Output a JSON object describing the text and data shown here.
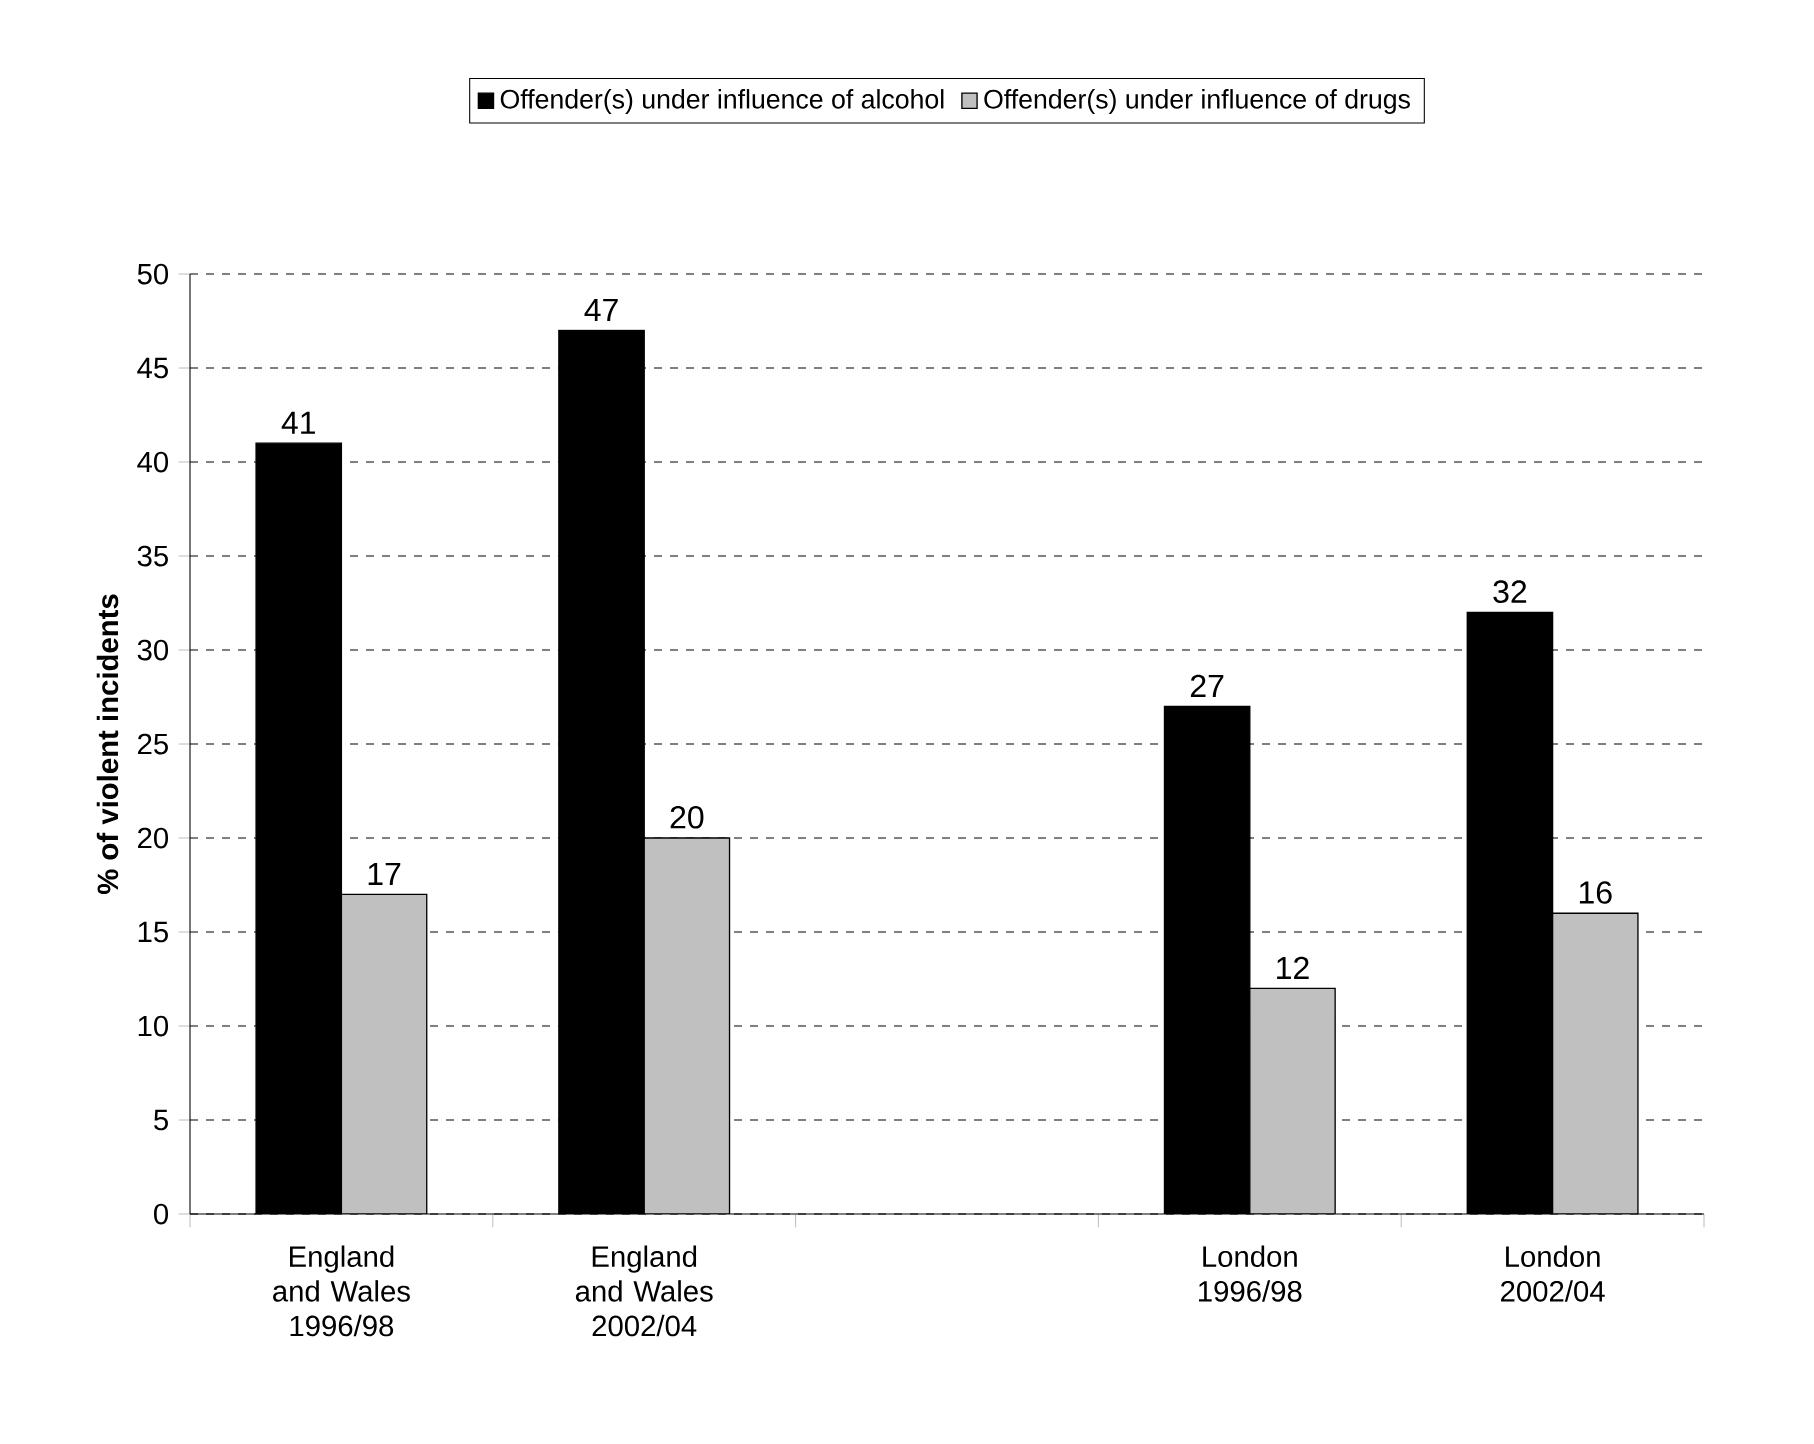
{
  "chart_data": {
    "type": "bar",
    "ylabel": "% of violent incidents",
    "categories": [
      "England and Wales 1996/98",
      "England and Wales 2002/04",
      null,
      "London 1996/98",
      "London 2002/04"
    ],
    "series": [
      {
        "name": "Offender(s) under influence of alcohol",
        "color": "#000000",
        "values": [
          41,
          47,
          null,
          27,
          32
        ]
      },
      {
        "name": "Offender(s) under influence of drugs",
        "color": "#c0c0c0",
        "values": [
          17,
          20,
          null,
          12,
          16
        ]
      }
    ],
    "ylim": [
      0,
      50
    ],
    "yticks": [
      0,
      5,
      10,
      15,
      20,
      25,
      30,
      35,
      40,
      45,
      50
    ],
    "grid": "y",
    "legend": "top",
    "data_labels": true
  }
}
